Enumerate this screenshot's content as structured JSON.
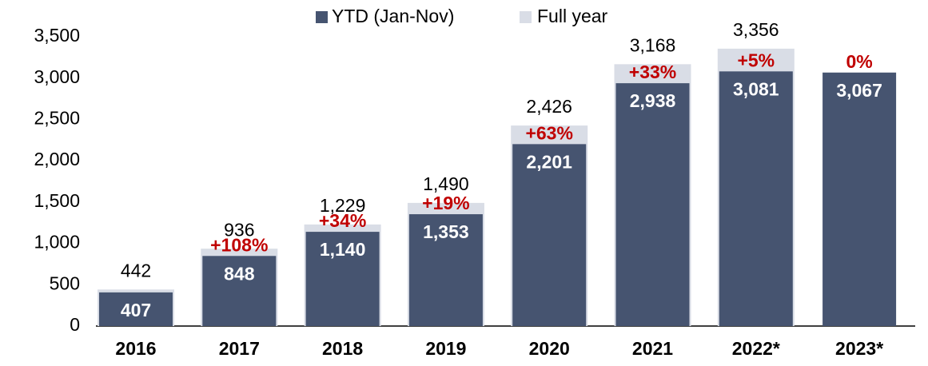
{
  "chart_data": {
    "type": "bar",
    "categories": [
      "2016",
      "2017",
      "2018",
      "2019",
      "2020",
      "2021",
      "2022*",
      "2023*"
    ],
    "series": [
      {
        "name": "Full year",
        "color": "#d9dde6",
        "values": [
          442,
          936,
          1229,
          1490,
          2426,
          3168,
          3356,
          null
        ],
        "value_labels": [
          "442",
          "936",
          "1,229",
          "1,490",
          "2,426",
          "3,168",
          "3,356",
          null
        ]
      },
      {
        "name": "YTD (Jan-Nov)",
        "color": "#465470",
        "values": [
          407,
          848,
          1140,
          1353,
          2201,
          2938,
          3081,
          3067
        ],
        "value_labels": [
          "407",
          "848",
          "1,140",
          "1,353",
          "2,201",
          "2,938",
          "3,081",
          "3,067"
        ]
      }
    ],
    "growth_labels": [
      null,
      "+108%",
      "+34%",
      "+19%",
      "+63%",
      "+33%",
      "+5%",
      "0%"
    ],
    "growth_color": "#c00000",
    "ylim": [
      0,
      3500
    ],
    "yticks": [
      0,
      500,
      {
        "value": 1000,
        "label": "1,000"
      },
      {
        "value": 1500,
        "label": "1,500"
      },
      {
        "value": 2000,
        "label": "2,000"
      },
      {
        "value": 2500,
        "label": "2,500"
      },
      {
        "value": 3000,
        "label": "3,000"
      },
      {
        "value": 3500,
        "label": "3,500"
      }
    ],
    "grid": false
  }
}
